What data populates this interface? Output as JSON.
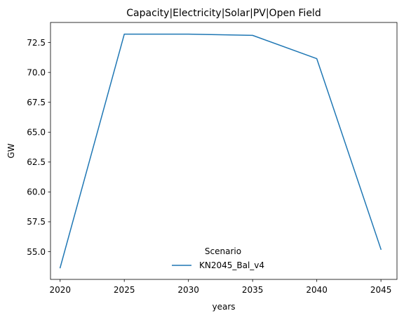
{
  "chart_data": {
    "type": "line",
    "title": "Capacity|Electricity|Solar|PV|Open Field",
    "xlabel": "years",
    "ylabel": "GW",
    "x": [
      2020,
      2025,
      2030,
      2035,
      2040,
      2045
    ],
    "series": [
      {
        "name": "KN2045_Bal_v4",
        "color": "#1f77b4",
        "values": [
          53.65,
          73.2,
          73.2,
          73.1,
          71.15,
          55.2
        ]
      }
    ],
    "xlim": [
      2019.25,
      2046.25
    ],
    "ylim": [
      52.68,
      74.18
    ],
    "xticks": [
      2020,
      2025,
      2030,
      2035,
      2040,
      2045
    ],
    "yticks": [
      55.0,
      57.5,
      60.0,
      62.5,
      65.0,
      67.5,
      70.0,
      72.5
    ],
    "ytick_labels": [
      "55.0",
      "57.5",
      "60.0",
      "62.5",
      "65.0",
      "67.5",
      "70.0",
      "72.5"
    ],
    "grid": false,
    "legend": {
      "title": "Scenario",
      "placement": "lower-center",
      "frame": false
    }
  }
}
